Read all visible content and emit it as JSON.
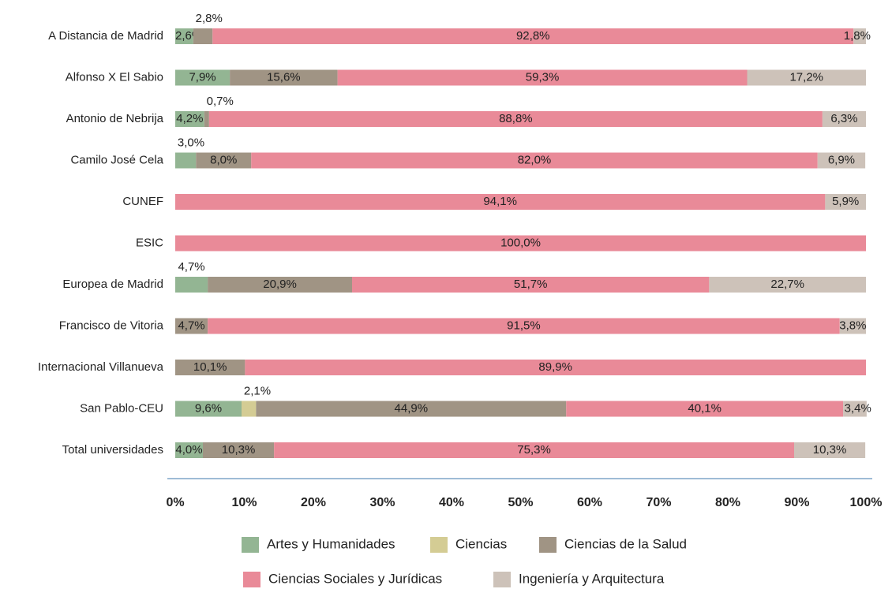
{
  "chart_data": {
    "type": "stacked_bar_horizontal",
    "categories": [
      "A Distancia de Madrid",
      "Alfonso X El Sabio",
      "Antonio de Nebrija",
      "Camilo José Cela",
      "CUNEF",
      "ESIC",
      "Europea de Madrid",
      "Francisco de Vitoria",
      "Internacional Villanueva",
      "San Pablo-CEU",
      "Total universidades"
    ],
    "series": [
      {
        "name": "Artes y Humanidades",
        "color": "#93b593",
        "values": [
          2.6,
          7.9,
          4.2,
          3.0,
          null,
          null,
          4.7,
          null,
          null,
          9.6,
          4.0
        ],
        "value_labels": [
          "2,6%",
          "7,9%",
          "4,2%",
          "3,0%",
          null,
          null,
          "4,7%",
          null,
          null,
          "9,6%",
          "4,0%"
        ]
      },
      {
        "name": "Ciencias",
        "color": "#d4cc94",
        "values": [
          null,
          null,
          null,
          null,
          null,
          null,
          null,
          null,
          null,
          2.1,
          null
        ],
        "value_labels": [
          null,
          null,
          null,
          null,
          null,
          null,
          null,
          null,
          null,
          "2,1%",
          null
        ]
      },
      {
        "name": "Ciencias de la Salud",
        "color": "#a09484",
        "values": [
          2.8,
          15.6,
          0.7,
          8.0,
          null,
          null,
          20.9,
          4.7,
          10.1,
          44.9,
          10.3
        ],
        "value_labels": [
          "2,8%",
          "15,6%",
          "0,7%",
          "8,0%",
          null,
          null,
          "20,9%",
          "4,7%",
          "10,1%",
          "44,9%",
          "10,3%"
        ]
      },
      {
        "name": "Ciencias Sociales y Jurídicas",
        "color": "#e98a98",
        "values": [
          92.8,
          59.3,
          88.8,
          82.0,
          94.1,
          100.0,
          51.7,
          91.5,
          89.9,
          40.1,
          75.3
        ],
        "value_labels": [
          "92,8%",
          "59,3%",
          "88,8%",
          "82,0%",
          "94,1%",
          "100,0%",
          "51,7%",
          "91,5%",
          "89,9%",
          "40,1%",
          "75,3%"
        ]
      },
      {
        "name": "Ingeniería y Arquitectura",
        "color": "#cdc2b9",
        "values": [
          1.8,
          17.2,
          6.3,
          6.9,
          5.9,
          null,
          22.7,
          3.8,
          null,
          3.4,
          10.3
        ],
        "value_labels": [
          "1,8%",
          "17,2%",
          "6,3%",
          "6,9%",
          "5,9%",
          null,
          "22,7%",
          "3,8%",
          null,
          "3,4%",
          "10,3%"
        ]
      }
    ],
    "xlim": [
      0,
      100
    ],
    "xticks": [
      {
        "value": 0,
        "label": "0%"
      },
      {
        "value": 10,
        "label": "10%"
      },
      {
        "value": 20,
        "label": "20%"
      },
      {
        "value": 30,
        "label": "30%"
      },
      {
        "value": 40,
        "label": "40%"
      },
      {
        "value": 50,
        "label": "50%"
      },
      {
        "value": 60,
        "label": "60%"
      },
      {
        "value": 70,
        "label": "70%"
      },
      {
        "value": 80,
        "label": "80%"
      },
      {
        "value": 90,
        "label": "90%"
      },
      {
        "value": 100,
        "label": "100%"
      }
    ]
  }
}
